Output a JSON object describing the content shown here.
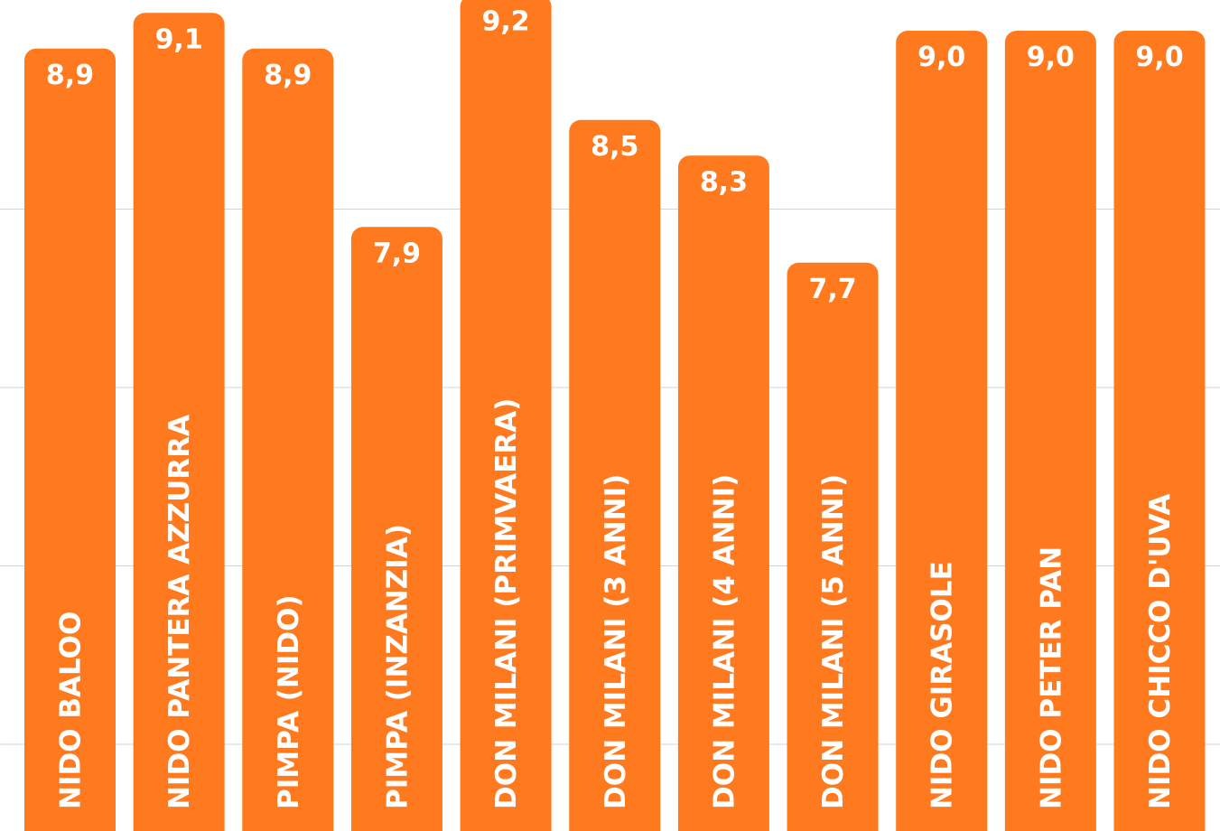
{
  "chart_data": {
    "type": "bar",
    "categories": [
      "NIDO BALOO",
      "NIDO PANTERA AZZURRA",
      "PIMPA (NIDO)",
      "PIMPA (INZANZIA)",
      "DON MILANI (PRIMVAERA)",
      "DON MILANI (3 ANNI)",
      "DON MILANI (4 ANNI)",
      "DON MILANI (5 ANNI)",
      "NIDO GIRASOLE",
      "NIDO PETER PAN",
      "NIDO CHICCO D'UVA"
    ],
    "values": [
      8.9,
      9.1,
      8.9,
      7.9,
      9.2,
      8.5,
      8.3,
      7.7,
      9.0,
      9.0,
      9.0
    ],
    "value_labels": [
      "8,9",
      "9,1",
      "8,9",
      "7,9",
      "9,2",
      "8,5",
      "8,3",
      "7,7",
      "9,0",
      "9,0",
      "9,0"
    ],
    "title": "",
    "xlabel": "",
    "ylabel": "",
    "ylim": [
      4.5,
      9.35
    ],
    "grid": true,
    "bar_color": "#FF7A1F",
    "grid_color": "#D4D4D4",
    "text_color": "#FFFFFF"
  }
}
